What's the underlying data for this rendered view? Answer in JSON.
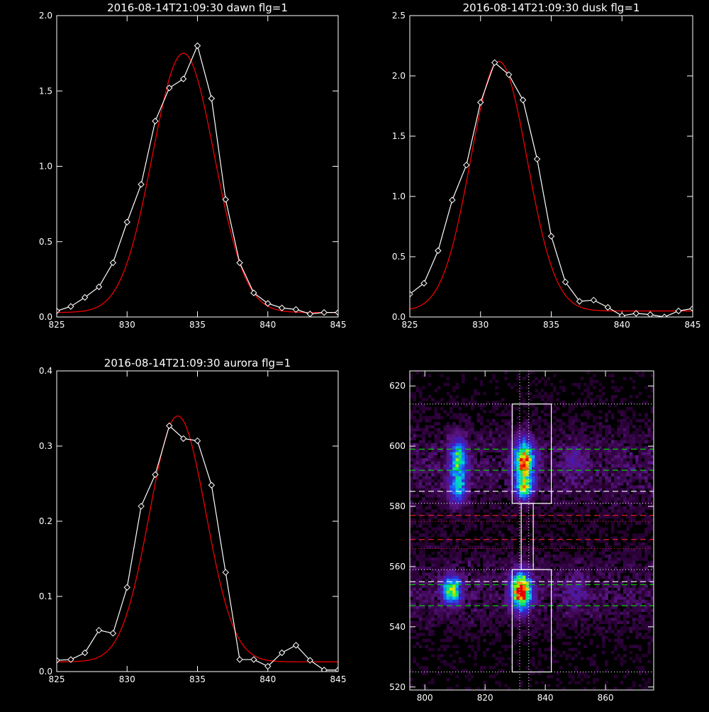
{
  "chart_data": [
    {
      "type": "line",
      "title": "2016-08-14T21:09:30 dawn flg=1",
      "xlim": [
        825,
        845
      ],
      "ylim": [
        0,
        2.0
      ],
      "xticks": [
        "825",
        "830",
        "835",
        "840",
        "845"
      ],
      "yticks": [
        "0.0",
        "0.5",
        "1.0",
        "1.5",
        "2.0"
      ],
      "series": [
        {
          "color": "#ffffff",
          "markers": "diamond",
          "x": [
            825,
            826,
            827,
            828,
            829,
            830,
            831,
            832,
            833,
            834,
            835,
            836,
            837,
            838,
            839,
            840,
            841,
            842,
            843,
            844,
            845
          ],
          "y": [
            0.04,
            0.07,
            0.13,
            0.2,
            0.36,
            0.63,
            0.88,
            1.3,
            1.52,
            1.58,
            1.8,
            1.45,
            0.78,
            0.36,
            0.16,
            0.09,
            0.06,
            0.05,
            0.02,
            0.03,
            0.03
          ]
        },
        {
          "color": "#ff0000",
          "type": "gaussian_fit",
          "amplitude": 1.72,
          "center": 834.0,
          "sigma": 2.2,
          "offset": 0.03
        }
      ]
    },
    {
      "type": "line",
      "title": "2016-08-14T21:09:30 dusk flg=1",
      "xlim": [
        825,
        845
      ],
      "ylim": [
        0,
        2.5
      ],
      "xticks": [
        "825",
        "830",
        "835",
        "840",
        "845"
      ],
      "yticks": [
        "0.0",
        "0.5",
        "1.0",
        "1.5",
        "2.0",
        "2.5"
      ],
      "series": [
        {
          "color": "#ffffff",
          "markers": "diamond",
          "x": [
            825,
            826,
            827,
            828,
            829,
            830,
            831,
            832,
            833,
            834,
            835,
            836,
            837,
            838,
            839,
            840,
            841,
            842,
            843,
            844,
            845
          ],
          "y": [
            0.19,
            0.28,
            0.55,
            0.97,
            1.26,
            1.78,
            2.11,
            2.01,
            1.8,
            1.31,
            0.67,
            0.29,
            0.13,
            0.14,
            0.08,
            0.01,
            0.03,
            0.02,
            0.0,
            0.05,
            0.07
          ]
        },
        {
          "color": "#ff0000",
          "type": "gaussian_fit",
          "amplitude": 2.07,
          "center": 831.3,
          "sigma": 2.0,
          "offset": 0.05
        }
      ]
    },
    {
      "type": "line",
      "title": "2016-08-14T21:09:30 aurora flg=1",
      "xlim": [
        825,
        845
      ],
      "ylim": [
        0,
        0.4
      ],
      "xticks": [
        "825",
        "830",
        "835",
        "840",
        "845"
      ],
      "yticks": [
        "0.0",
        "0.1",
        "0.2",
        "0.3",
        "0.4"
      ],
      "series": [
        {
          "color": "#ffffff",
          "markers": "diamond",
          "x": [
            825,
            826,
            827,
            828,
            829,
            830,
            831,
            832,
            833,
            834,
            835,
            836,
            837,
            838,
            839,
            840,
            841,
            842,
            843,
            844,
            845
          ],
          "y": [
            0.015,
            0.016,
            0.025,
            0.055,
            0.051,
            0.112,
            0.22,
            0.262,
            0.327,
            0.31,
            0.307,
            0.248,
            0.132,
            0.016,
            0.016,
            0.007,
            0.025,
            0.035,
            0.015,
            0.002,
            0.002
          ]
        },
        {
          "color": "#ff0000",
          "type": "gaussian_fit",
          "amplitude": 0.327,
          "center": 833.6,
          "sigma": 2.0,
          "offset": 0.013
        }
      ]
    },
    {
      "type": "heatmap",
      "xlim": [
        795,
        876
      ],
      "ylim": [
        519,
        625
      ],
      "xticks": [
        "800",
        "820",
        "840",
        "860"
      ],
      "yticks": [
        "520",
        "540",
        "560",
        "580",
        "600",
        "620"
      ],
      "colormap": "rainbow",
      "blobs": [
        {
          "x": 811,
          "y": 596,
          "sx": 2.0,
          "sy": 4.5,
          "amp": 0.55
        },
        {
          "x": 811,
          "y": 586,
          "sx": 2.0,
          "sy": 3.5,
          "amp": 0.45
        },
        {
          "x": 809,
          "y": 552,
          "sx": 2.0,
          "sy": 3.0,
          "amp": 0.75
        },
        {
          "x": 833,
          "y": 595,
          "sx": 2.2,
          "sy": 4.5,
          "amp": 0.9
        },
        {
          "x": 833,
          "y": 586,
          "sx": 2.0,
          "sy": 2.5,
          "amp": 0.6
        },
        {
          "x": 832,
          "y": 552,
          "sx": 2.2,
          "sy": 4.0,
          "amp": 1.0
        },
        {
          "x": 850,
          "y": 595,
          "sx": 3.0,
          "sy": 4.0,
          "amp": 0.12
        },
        {
          "x": 850,
          "y": 552,
          "sx": 3.0,
          "sy": 4.0,
          "amp": 0.1
        }
      ],
      "boxes": [
        {
          "x0": 829,
          "x1": 842,
          "y0": 581,
          "y1": 614
        },
        {
          "x0": 829,
          "x1": 842,
          "y0": 525,
          "y1": 559
        },
        {
          "x0": 832,
          "x1": 836,
          "y0": 559,
          "y1": 581
        }
      ],
      "vlines_dotted": [
        831.5,
        834.5
      ],
      "hlines_dotted_white": [
        614,
        581,
        559,
        525
      ],
      "hlines_dotted_red": [
        575,
        566
      ],
      "hlines_dashed": [
        {
          "y": 599,
          "color": "#00cc00"
        },
        {
          "y": 592,
          "color": "#00cc00"
        },
        {
          "y": 585,
          "color": "#ffffff"
        },
        {
          "y": 577,
          "color": "#dd2222"
        },
        {
          "y": 569,
          "color": "#dd2222"
        },
        {
          "y": 555,
          "color": "#ffffff"
        },
        {
          "y": 554,
          "color": "#00cc00"
        },
        {
          "y": 547,
          "color": "#00cc00"
        }
      ]
    }
  ]
}
